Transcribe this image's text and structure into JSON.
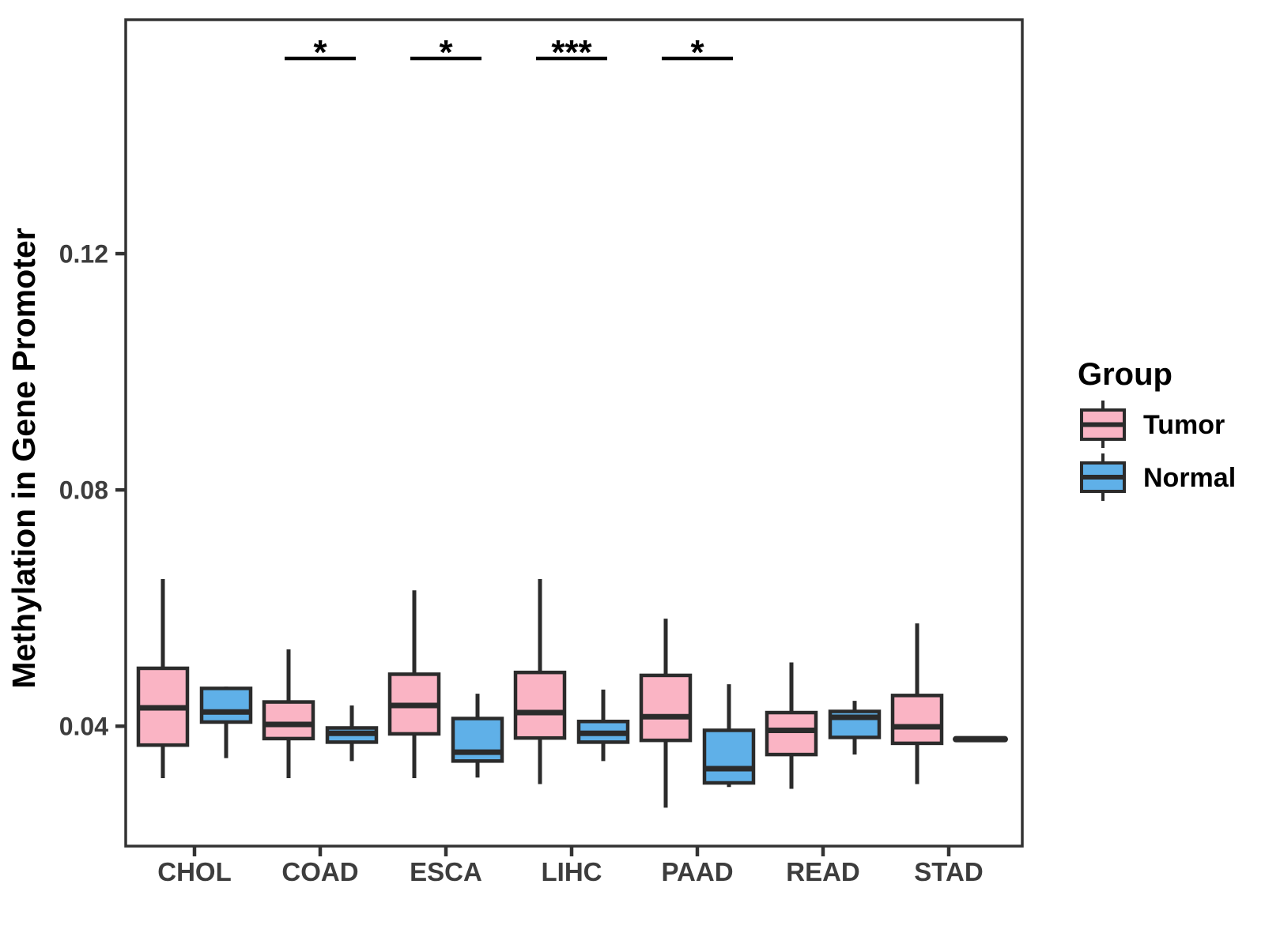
{
  "chart_data": {
    "type": "box",
    "title": "",
    "xlabel": "",
    "ylabel": "Methylation in Gene Promoter",
    "ylim": [
      0.0197,
      0.1596
    ],
    "grid": false,
    "yticks": [
      {
        "value": 0.04,
        "label": "0.04"
      },
      {
        "value": 0.08,
        "label": "0.08"
      },
      {
        "value": 0.12,
        "label": "0.12"
      }
    ],
    "categories": [
      "CHOL",
      "COAD",
      "ESCA",
      "LIHC",
      "PAAD",
      "READ",
      "STAD"
    ],
    "legend": {
      "title": "Group",
      "position": "right"
    },
    "series": [
      {
        "name": "Tumor",
        "color": "#FAB4C4",
        "boxes": [
          {
            "low": 0.0312,
            "q1": 0.0368,
            "median": 0.0431,
            "q3": 0.0498,
            "high": 0.0649
          },
          {
            "low": 0.0312,
            "q1": 0.0379,
            "median": 0.0403,
            "q3": 0.0441,
            "high": 0.053
          },
          {
            "low": 0.0312,
            "q1": 0.0387,
            "median": 0.0435,
            "q3": 0.0488,
            "high": 0.063
          },
          {
            "low": 0.0302,
            "q1": 0.038,
            "median": 0.0423,
            "q3": 0.0491,
            "high": 0.0649
          },
          {
            "low": 0.0262,
            "q1": 0.0376,
            "median": 0.0416,
            "q3": 0.0486,
            "high": 0.0582
          },
          {
            "low": 0.0294,
            "q1": 0.0352,
            "median": 0.0393,
            "q3": 0.0423,
            "high": 0.0508
          },
          {
            "low": 0.0302,
            "q1": 0.0371,
            "median": 0.0399,
            "q3": 0.0452,
            "high": 0.0574
          }
        ]
      },
      {
        "name": "Normal",
        "color": "#5FB0E8",
        "boxes": [
          {
            "low": 0.0346,
            "q1": 0.0407,
            "median": 0.0424,
            "q3": 0.0464,
            "high": 0.0467
          },
          {
            "low": 0.0341,
            "q1": 0.0373,
            "median": 0.0388,
            "q3": 0.0397,
            "high": 0.0435
          },
          {
            "low": 0.0313,
            "q1": 0.0341,
            "median": 0.0356,
            "q3": 0.0413,
            "high": 0.0455
          },
          {
            "low": 0.0341,
            "q1": 0.0373,
            "median": 0.0388,
            "q3": 0.0408,
            "high": 0.0462
          },
          {
            "low": 0.0297,
            "q1": 0.0304,
            "median": 0.0328,
            "q3": 0.0393,
            "high": 0.0471
          },
          {
            "low": 0.0352,
            "q1": 0.0381,
            "median": 0.0415,
            "q3": 0.0425,
            "high": 0.0443
          },
          {
            "low": 0.0378,
            "q1": 0.0378,
            "median": 0.0378,
            "q3": 0.0378,
            "high": 0.0378
          }
        ]
      }
    ],
    "significance": [
      {
        "category": "COAD",
        "label": "*"
      },
      {
        "category": "ESCA",
        "label": "*"
      },
      {
        "category": "LIHC",
        "label": "***"
      },
      {
        "category": "PAAD",
        "label": "*"
      }
    ]
  },
  "style": {
    "box_outline_color": "#2B2B2B",
    "axis_color": "#333333",
    "tick_label_color": "#3D3D3D",
    "significance_color": "#000000",
    "background_color": "#FFFFFF"
  }
}
